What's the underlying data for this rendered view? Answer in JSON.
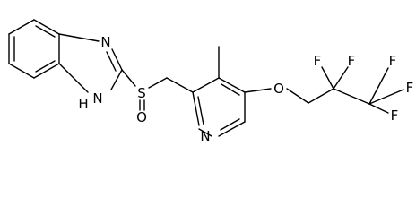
{
  "labels": {
    "n_imidazole": "N",
    "h_imidazole": "H",
    "n_imidazole_h": "N",
    "s": "S",
    "o_sulfinyl": "O",
    "n_pyridine": "N",
    "o_ether": "O",
    "f1": "F",
    "f2": "F",
    "f3": "F",
    "f4": "F",
    "f5": "F"
  }
}
